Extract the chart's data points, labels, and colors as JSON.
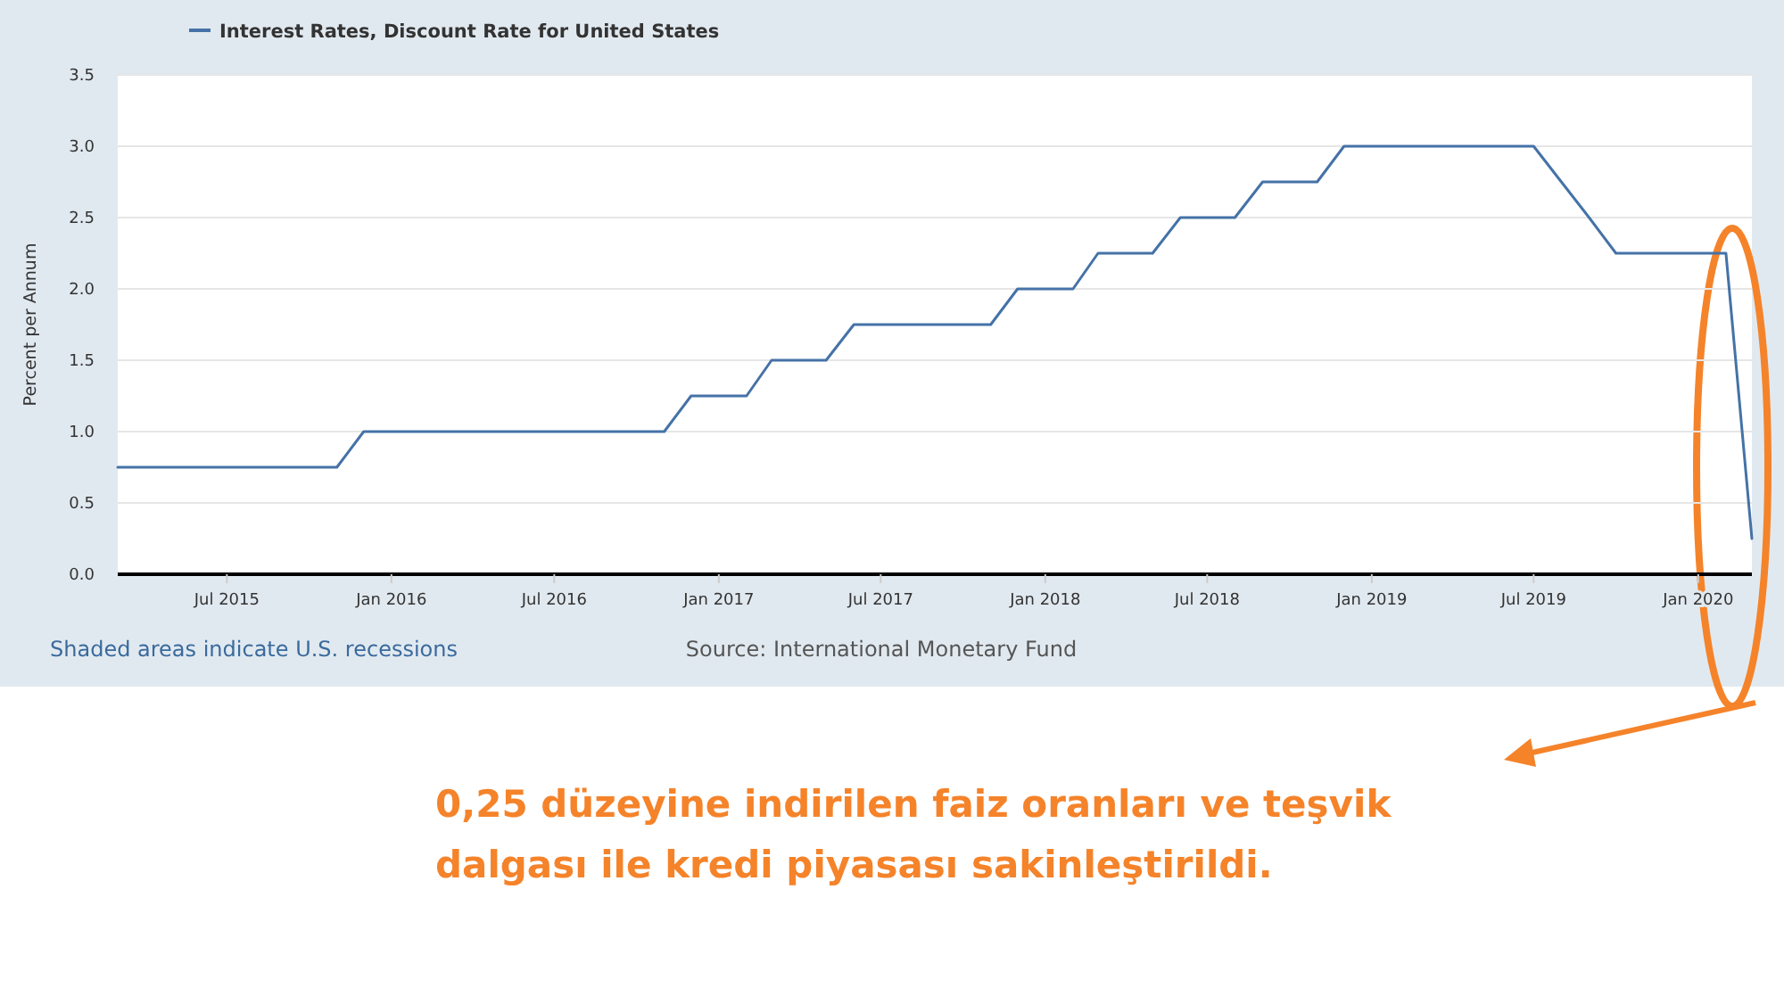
{
  "chart_data": {
    "type": "line",
    "ylabel": "Percent per Annum",
    "x": [
      "2015-03",
      "2015-04",
      "2015-05",
      "2015-06",
      "2015-07",
      "2015-08",
      "2015-09",
      "2015-10",
      "2015-11",
      "2015-12",
      "2016-01",
      "2016-02",
      "2016-03",
      "2016-04",
      "2016-05",
      "2016-06",
      "2016-07",
      "2016-08",
      "2016-09",
      "2016-10",
      "2016-11",
      "2016-12",
      "2017-01",
      "2017-02",
      "2017-03",
      "2017-04",
      "2017-05",
      "2017-06",
      "2017-07",
      "2017-08",
      "2017-09",
      "2017-10",
      "2017-11",
      "2017-12",
      "2018-01",
      "2018-02",
      "2018-03",
      "2018-04",
      "2018-05",
      "2018-06",
      "2018-07",
      "2018-08",
      "2018-09",
      "2018-10",
      "2018-11",
      "2018-12",
      "2019-01",
      "2019-02",
      "2019-03",
      "2019-04",
      "2019-05",
      "2019-06",
      "2019-07",
      "2019-08",
      "2019-09",
      "2019-10",
      "2019-11",
      "2019-12",
      "2020-01",
      "2020-02",
      "2020-03"
    ],
    "series": [
      {
        "name": "Interest Rates, Discount Rate for United States",
        "color": "#4572a7",
        "values": [
          0.75,
          0.75,
          0.75,
          0.75,
          0.75,
          0.75,
          0.75,
          0.75,
          0.75,
          1.0,
          1.0,
          1.0,
          1.0,
          1.0,
          1.0,
          1.0,
          1.0,
          1.0,
          1.0,
          1.0,
          1.0,
          1.25,
          1.25,
          1.25,
          1.5,
          1.5,
          1.5,
          1.75,
          1.75,
          1.75,
          1.75,
          1.75,
          1.75,
          2.0,
          2.0,
          2.0,
          2.25,
          2.25,
          2.25,
          2.5,
          2.5,
          2.5,
          2.75,
          2.75,
          2.75,
          3.0,
          3.0,
          3.0,
          3.0,
          3.0,
          3.0,
          3.0,
          3.0,
          2.75,
          2.5,
          2.25,
          2.25,
          2.25,
          2.25,
          2.25,
          0.25
        ]
      }
    ],
    "xlim": [
      "2015-03",
      "2020-03"
    ],
    "xticks": [
      {
        "value": "2015-07",
        "label": "Jul 2015"
      },
      {
        "value": "2016-01",
        "label": "Jan 2016"
      },
      {
        "value": "2016-07",
        "label": "Jul 2016"
      },
      {
        "value": "2017-01",
        "label": "Jan 2017"
      },
      {
        "value": "2017-07",
        "label": "Jul 2017"
      },
      {
        "value": "2018-01",
        "label": "Jan 2018"
      },
      {
        "value": "2018-07",
        "label": "Jul 2018"
      },
      {
        "value": "2019-01",
        "label": "Jan 2019"
      },
      {
        "value": "2019-07",
        "label": "Jul 2019"
      },
      {
        "value": "2020-01",
        "label": "Jan 2020"
      }
    ],
    "ylim": [
      0,
      3.5
    ],
    "yticks": [
      {
        "value": 0,
        "label": "0.0"
      },
      {
        "value": 0.5,
        "label": "0.5"
      },
      {
        "value": 1,
        "label": "1.0"
      },
      {
        "value": 1.5,
        "label": "1.5"
      },
      {
        "value": 2,
        "label": "2.0"
      },
      {
        "value": 2.5,
        "label": "2.5"
      },
      {
        "value": 3,
        "label": "3.0"
      },
      {
        "value": 3.5,
        "label": "3.5"
      }
    ],
    "grid": "y",
    "legend": "top left",
    "marker": "none",
    "line_style": "solid",
    "annotations": [
      "Shaded areas indicate U.S. recessions",
      "Source: International Monetary Fund",
      "0,25 düzeyine indirilen faiz oranları ve teşvik dalgası ile kredi piyasası sakinleştirildi."
    ]
  }
}
